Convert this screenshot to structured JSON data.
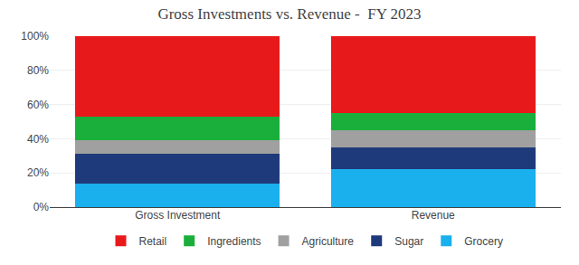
{
  "chart_data": {
    "type": "bar",
    "title": "Gross Investments vs. Revenue -  FY 2023",
    "categories": [
      "Gross Investment",
      "Revenue"
    ],
    "series": [
      {
        "name": "Grocery",
        "color": "#1AAFED",
        "values": [
          14,
          22
        ]
      },
      {
        "name": "Sugar",
        "color": "#1F3A7A",
        "values": [
          17,
          13
        ]
      },
      {
        "name": "Agriculture",
        "color": "#A0A0A0",
        "values": [
          8,
          10
        ]
      },
      {
        "name": "Ingredients",
        "color": "#1AAF3A",
        "values": [
          14,
          10
        ]
      },
      {
        "name": "Retail",
        "color": "#E8191A",
        "values": [
          47,
          45
        ]
      }
    ],
    "stacked": true,
    "ylim": [
      0,
      100
    ],
    "yticks": [
      {
        "value": 0,
        "label": "0%"
      },
      {
        "value": 20,
        "label": "20%"
      },
      {
        "value": 40,
        "label": "40%"
      },
      {
        "value": 60,
        "label": "60%"
      },
      {
        "value": 80,
        "label": "80%"
      },
      {
        "value": 100,
        "label": "100%"
      }
    ],
    "grid": true,
    "legend": "bottom"
  }
}
